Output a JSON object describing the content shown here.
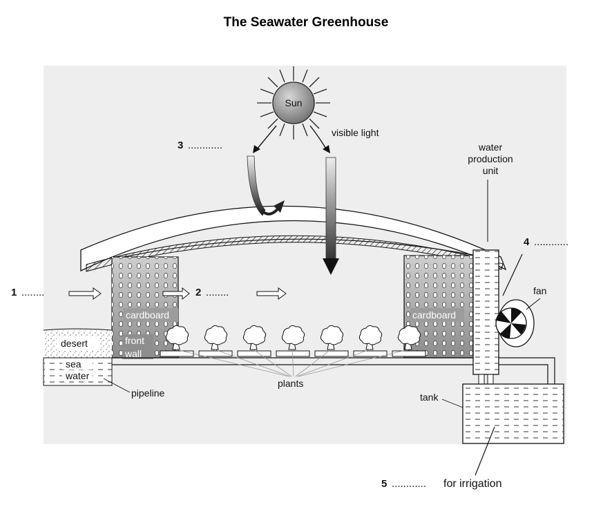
{
  "title": "The Seawater Greenhouse",
  "labels": {
    "sun": "Sun",
    "visible_light": "visible light",
    "water_production_unit": [
      "water",
      "production",
      "unit"
    ],
    "fan": "fan",
    "cardboard_left": "cardboard",
    "cardboard_right": "cardboard",
    "desert": "desert",
    "sea_water": [
      "sea",
      "water"
    ],
    "front_wall": [
      "front",
      "wall"
    ],
    "plants": "plants",
    "pipeline": "pipeline",
    "tank": "tank",
    "for_irrigation": "for irrigation"
  },
  "blanks": [
    {
      "number": "1",
      "dots": "........"
    },
    {
      "number": "2",
      "dots": "........"
    },
    {
      "number": "3",
      "dots": "............"
    },
    {
      "number": "4",
      "dots": "............"
    },
    {
      "number": "5",
      "dots": "............"
    }
  ],
  "colors": {
    "background_panel": "#eeeeee",
    "ink": "#111111",
    "sun_fill": "#9a9a9a",
    "cardboard": "#a8a8a8"
  }
}
